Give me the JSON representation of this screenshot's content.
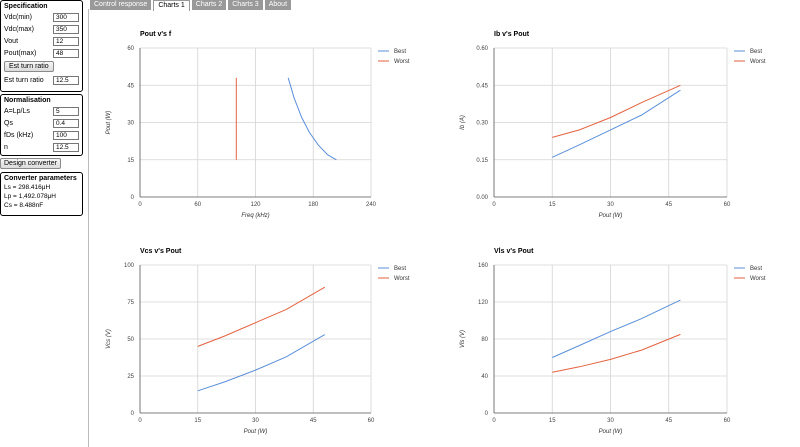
{
  "specification": {
    "title": "Specification",
    "fields": [
      {
        "label": "Vdc(min)",
        "value": "300"
      },
      {
        "label": "Vdc(max)",
        "value": "350"
      },
      {
        "label": "Vout",
        "value": "12"
      },
      {
        "label": "Pout(max)",
        "value": "48"
      }
    ],
    "est_button": "Est turn ratio",
    "turn_ratio_label": "Est turn ratio",
    "turn_ratio_value": "12.5"
  },
  "normalisation": {
    "title": "Normalisation",
    "fields": [
      {
        "label": "A=Lp/Ls",
        "value": "5"
      },
      {
        "label": "Qs",
        "value": "0.4"
      },
      {
        "label": "fDs (kHz)",
        "value": "100"
      },
      {
        "label": "n",
        "value": "12.5"
      }
    ]
  },
  "design_button": "Design converter",
  "converter_parameters": {
    "title": "Converter parameters",
    "lines": [
      "Ls = 298.416μH",
      "Lp = 1,492.078μH",
      "Cs = 8.488nF"
    ]
  },
  "tabs": [
    "Control response",
    "Charts 1",
    "Charts 2",
    "Charts 3",
    "About"
  ],
  "active_tab": "Charts 1",
  "colors": {
    "best": "#5b8fd9",
    "worst": "#e3623f",
    "grid": "#d4d4d4",
    "axis": "#555555"
  },
  "chart_data": [
    {
      "type": "line",
      "title": "Pout v's f",
      "xlabel": "Freq (kHz)",
      "ylabel": "Pout (W)",
      "xlim": [
        0,
        240
      ],
      "ylim": [
        0,
        60
      ],
      "xticks": [
        "0",
        "60",
        "120",
        "180",
        "240"
      ],
      "yticks": [
        "0",
        "15",
        "30",
        "45",
        "60"
      ],
      "legend": "top-right",
      "series": [
        {
          "name": "Best",
          "points": [
            [
              154,
              48
            ],
            [
              160,
              40
            ],
            [
              168,
              32
            ],
            [
              176,
              26
            ],
            [
              185,
              21
            ],
            [
              195,
              17
            ],
            [
              204,
              15
            ]
          ]
        },
        {
          "name": "Worst",
          "points": [
            [
              100,
              48
            ],
            [
              100,
              15
            ]
          ]
        }
      ]
    },
    {
      "type": "line",
      "title": "Ib v's Pout",
      "xlabel": "Pout (W)",
      "ylabel": "Ib (A)",
      "xlim": [
        0,
        60
      ],
      "ylim": [
        0,
        0.6
      ],
      "xticks": [
        "0",
        "15",
        "30",
        "45",
        "60"
      ],
      "yticks": [
        "0.00",
        "0.15",
        "0.30",
        "0.45",
        "0.60"
      ],
      "legend": "top-right",
      "series": [
        {
          "name": "Best",
          "points": [
            [
              15,
              0.16
            ],
            [
              22,
              0.21
            ],
            [
              30,
              0.27
            ],
            [
              38,
              0.33
            ],
            [
              48,
              0.43
            ]
          ]
        },
        {
          "name": "Worst",
          "points": [
            [
              15,
              0.24
            ],
            [
              22,
              0.27
            ],
            [
              30,
              0.32
            ],
            [
              38,
              0.38
            ],
            [
              48,
              0.45
            ]
          ]
        }
      ]
    },
    {
      "type": "line",
      "title": "Vcs v's Pout",
      "xlabel": "Pout (W)",
      "ylabel": "Vcs (V)",
      "xlim": [
        0,
        60
      ],
      "ylim": [
        0,
        100
      ],
      "xticks": [
        "0",
        "15",
        "30",
        "45",
        "60"
      ],
      "yticks": [
        "0",
        "25",
        "50",
        "75",
        "100"
      ],
      "legend": "top-right",
      "series": [
        {
          "name": "Best",
          "points": [
            [
              15,
              15
            ],
            [
              22,
              21
            ],
            [
              30,
              29
            ],
            [
              38,
              38
            ],
            [
              48,
              53
            ]
          ]
        },
        {
          "name": "Worst",
          "points": [
            [
              15,
              45
            ],
            [
              22,
              52
            ],
            [
              30,
              61
            ],
            [
              38,
              70
            ],
            [
              48,
              85
            ]
          ]
        }
      ]
    },
    {
      "type": "line",
      "title": "Vls v's Pout",
      "xlabel": "Pout (W)",
      "ylabel": "Vls (V)",
      "xlim": [
        0,
        60
      ],
      "ylim": [
        0,
        160
      ],
      "xticks": [
        "0",
        "15",
        "30",
        "45",
        "60"
      ],
      "yticks": [
        "0",
        "40",
        "80",
        "120",
        "160"
      ],
      "legend": "top-right",
      "series": [
        {
          "name": "Best",
          "points": [
            [
              15,
              60
            ],
            [
              22,
              73
            ],
            [
              30,
              88
            ],
            [
              38,
              102
            ],
            [
              48,
              122
            ]
          ]
        },
        {
          "name": "Worst",
          "points": [
            [
              15,
              44
            ],
            [
              22,
              50
            ],
            [
              30,
              58
            ],
            [
              38,
              68
            ],
            [
              48,
              85
            ]
          ]
        }
      ]
    }
  ]
}
